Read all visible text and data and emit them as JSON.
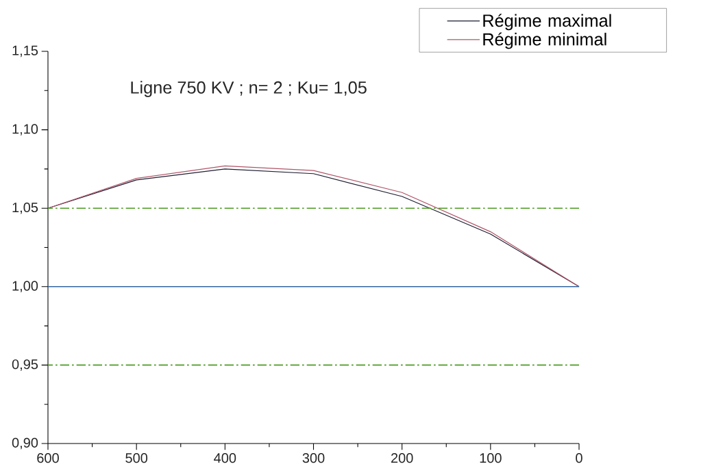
{
  "chart_data": {
    "type": "line",
    "title": "Ligne 750 KV ; n= 2 ; Ku= 1,05",
    "x": [
      600,
      500,
      400,
      300,
      200,
      100,
      0
    ],
    "series": [
      {
        "name": "Régime maximal",
        "color": "#1c1c30",
        "values": [
          1.05,
          1.068,
          1.075,
          1.072,
          1.0575,
          1.0335,
          1.0
        ]
      },
      {
        "name": "Régime minimal",
        "color": "#b05468",
        "values": [
          1.05,
          1.069,
          1.077,
          1.074,
          1.06,
          1.035,
          1.0
        ]
      }
    ],
    "xlim": [
      600,
      0
    ],
    "xticks": [
      600,
      500,
      400,
      300,
      200,
      100,
      0
    ],
    "ylim": [
      0.9,
      1.15
    ],
    "yticks": [
      {
        "value": 0.9,
        "label": "0,90"
      },
      {
        "value": 0.95,
        "label": "0,95"
      },
      {
        "value": 1.0,
        "label": "1,00"
      },
      {
        "value": 1.05,
        "label": "1,05"
      },
      {
        "value": 1.1,
        "label": "1,10"
      },
      {
        "value": 1.15,
        "label": "1,15"
      }
    ],
    "ref_lines": [
      {
        "axis": "y",
        "value": 1.05,
        "color": "#4a9a20",
        "line_style": "dashdot"
      },
      {
        "axis": "y",
        "value": 1.0,
        "color": "#3466a0",
        "line_style": "solid"
      },
      {
        "axis": "y",
        "value": 0.95,
        "color": "#4a9a20",
        "line_style": "dashdot"
      }
    ],
    "legend": "top right",
    "grid": false,
    "marker": "none",
    "line_style": "solid"
  }
}
